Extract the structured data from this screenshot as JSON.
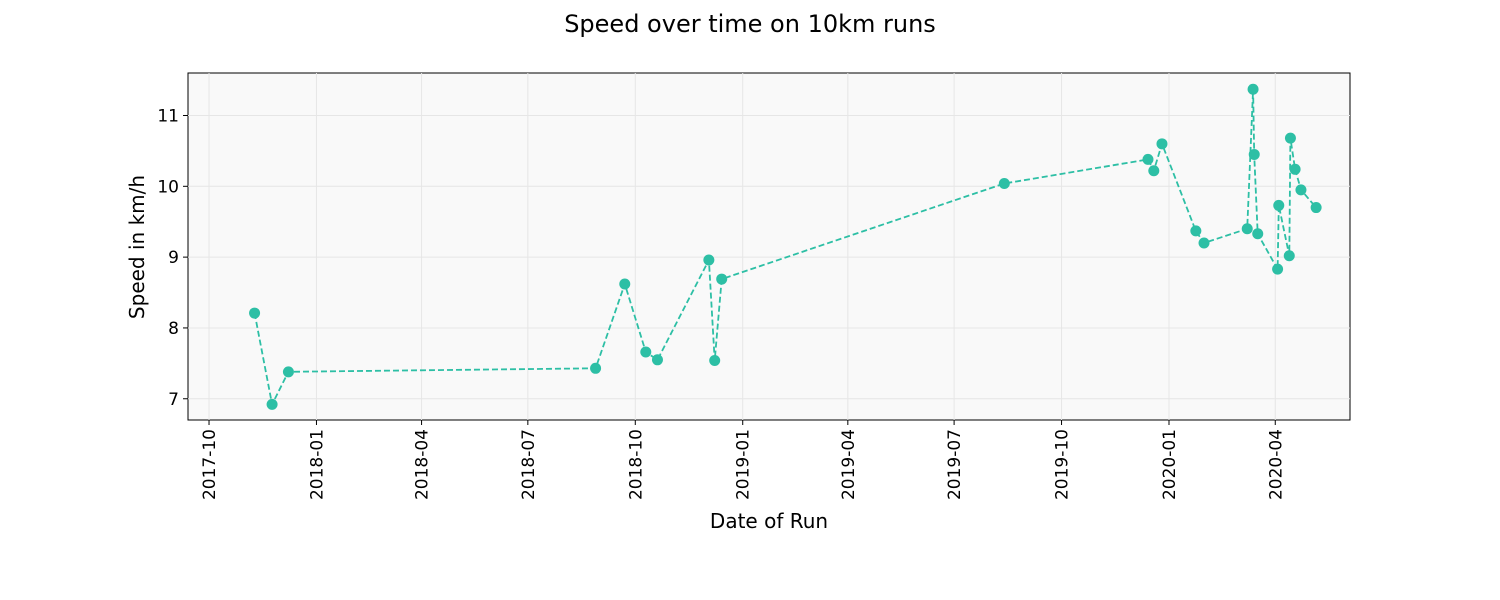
{
  "chart_data": {
    "type": "line",
    "title": "Speed over time on 10km runs",
    "xlabel": "Date of Run",
    "ylabel": "Speed in km/h",
    "x_type": "date",
    "xlim": [
      "2017-09-13",
      "2020-06-04"
    ],
    "ylim": [
      6.7,
      11.6
    ],
    "xticks": [
      "2017-10",
      "2018-01",
      "2018-04",
      "2018-07",
      "2018-10",
      "2019-01",
      "2019-04",
      "2019-07",
      "2019-10",
      "2020-01",
      "2020-04"
    ],
    "yticks": [
      7,
      8,
      9,
      10,
      11
    ],
    "grid": true,
    "line_style": "dashed",
    "marker": "circle",
    "color": "#2dbfa5",
    "series": [
      {
        "x": [
          "2017-11-09",
          "2017-11-24",
          "2017-12-08",
          "2018-08-28",
          "2018-09-22",
          "2018-10-10",
          "2018-10-20",
          "2018-12-03",
          "2018-12-08",
          "2018-12-14",
          "2019-08-13",
          "2019-12-14",
          "2019-12-19",
          "2019-12-26",
          "2020-01-24",
          "2020-01-31",
          "2020-03-08",
          "2020-03-13",
          "2020-03-14",
          "2020-03-17",
          "2020-04-03",
          "2020-04-04",
          "2020-04-13",
          "2020-04-14",
          "2020-04-18",
          "2020-04-23",
          "2020-05-06"
        ],
        "y": [
          8.21,
          6.92,
          7.38,
          7.43,
          8.62,
          7.66,
          7.55,
          8.96,
          7.54,
          8.69,
          10.04,
          10.38,
          10.22,
          10.6,
          9.37,
          9.2,
          9.4,
          11.37,
          10.45,
          9.33,
          8.83,
          9.73,
          9.02,
          10.68,
          10.24,
          9.95,
          9.7
        ]
      }
    ]
  }
}
